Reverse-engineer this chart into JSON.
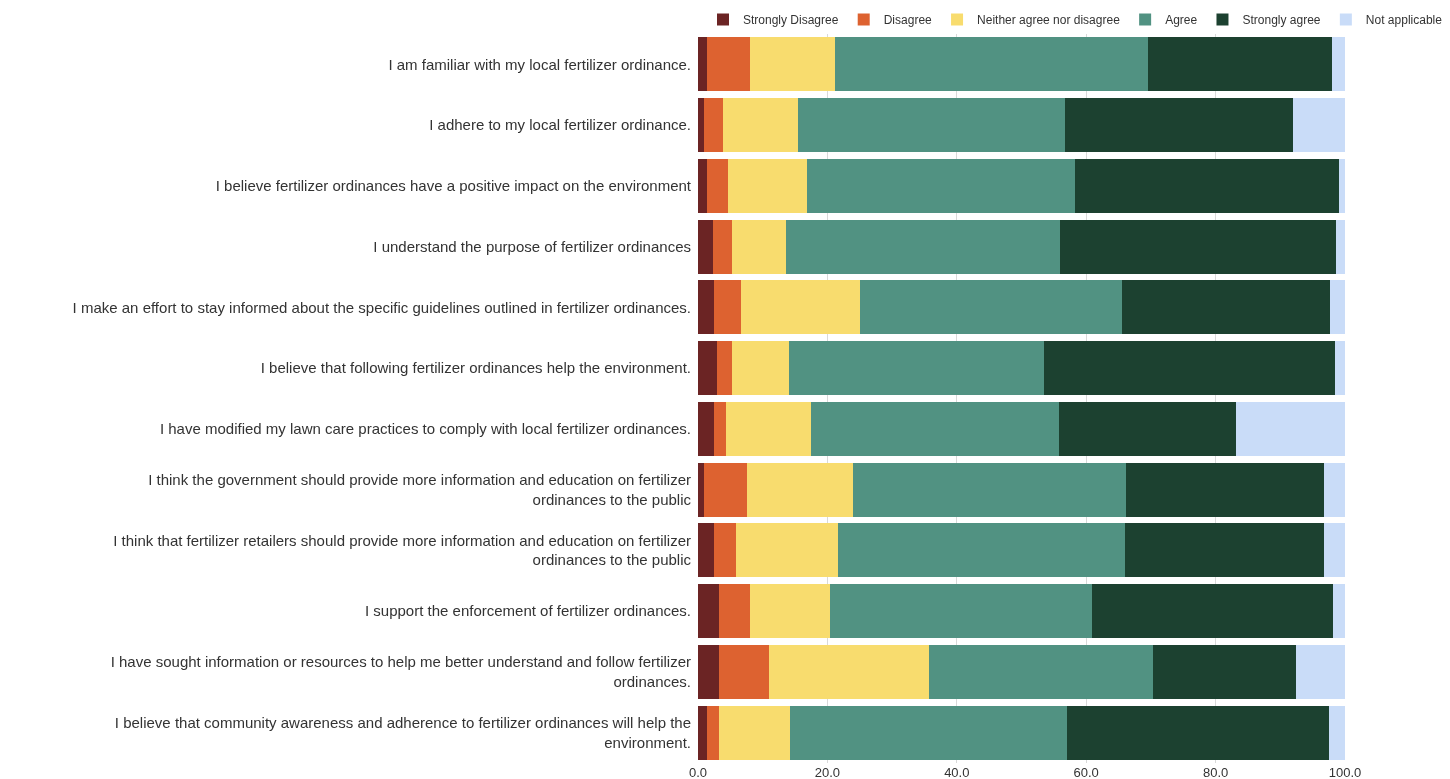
{
  "chart_data": {
    "type": "bar",
    "orientation": "horizontal",
    "stacked": true,
    "categories": [
      "I am familiar with my local fertilizer ordinance.",
      "I adhere to my local fertilizer ordinance.",
      "I believe fertilizer ordinances have a positive impact on the environment",
      "I understand the purpose of fertilizer ordinances",
      "I make an effort to stay informed about the specific guidelines outlined in fertilizer ordinances.",
      "I believe that following fertilizer ordinances help the environment.",
      "I have modified my lawn care practices to comply with local fertilizer ordinances.",
      "I think the government should provide more information and education on fertilizer\nordinances to the public",
      "I think that fertilizer retailers should provide more information and education on fertilizer\nordinances to the public",
      "I support the enforcement of fertilizer ordinances.",
      "I have sought information or resources to help me better understand and follow fertilizer\nordinances.",
      "I believe that community awareness and adherence to fertilizer ordinances will help the\nenvironment."
    ],
    "series": [
      {
        "name": "Strongly Disagree",
        "color": "#6b2424",
        "values": [
          1.4,
          0.9,
          1.4,
          2.3,
          2.4,
          2.9,
          2.4,
          1.0,
          2.4,
          3.3,
          3.3,
          1.4
        ]
      },
      {
        "name": "Disagree",
        "color": "#dd6230",
        "values": [
          6.6,
          2.9,
          3.3,
          2.9,
          4.2,
          2.3,
          2.0,
          6.5,
          3.4,
          4.7,
          7.6,
          1.9
        ]
      },
      {
        "name": "Neither agree nor disagree",
        "color": "#f8dc6e",
        "values": [
          13.1,
          11.7,
          12.2,
          8.4,
          18.5,
          8.9,
          13.1,
          16.4,
          15.9,
          12.4,
          24.8,
          10.9
        ]
      },
      {
        "name": "Agree",
        "color": "#519282",
        "values": [
          48.4,
          41.2,
          41.3,
          42.4,
          40.5,
          39.3,
          38.3,
          42.3,
          44.3,
          40.5,
          34.7,
          42.8
        ]
      },
      {
        "name": "Strongly agree",
        "color": "#1c4130",
        "values": [
          28.5,
          35.2,
          40.8,
          42.6,
          32.1,
          45.0,
          27.3,
          30.5,
          30.7,
          37.3,
          22.1,
          40.6
        ]
      },
      {
        "name": "Not applicable",
        "color": "#c9dcf8",
        "values": [
          2.0,
          8.1,
          1.0,
          1.4,
          2.3,
          1.6,
          16.9,
          3.3,
          3.3,
          1.8,
          7.5,
          2.4
        ]
      }
    ],
    "xlim": [
      0,
      100
    ],
    "xticks": [
      {
        "value": 0,
        "label": "0.0"
      },
      {
        "value": 20,
        "label": "20.0"
      },
      {
        "value": 40,
        "label": "40.0"
      },
      {
        "value": 60,
        "label": "60.0"
      },
      {
        "value": 80,
        "label": "80.0"
      },
      {
        "value": 100,
        "label": "100.0"
      }
    ],
    "grid": "x",
    "legend": "top right"
  }
}
